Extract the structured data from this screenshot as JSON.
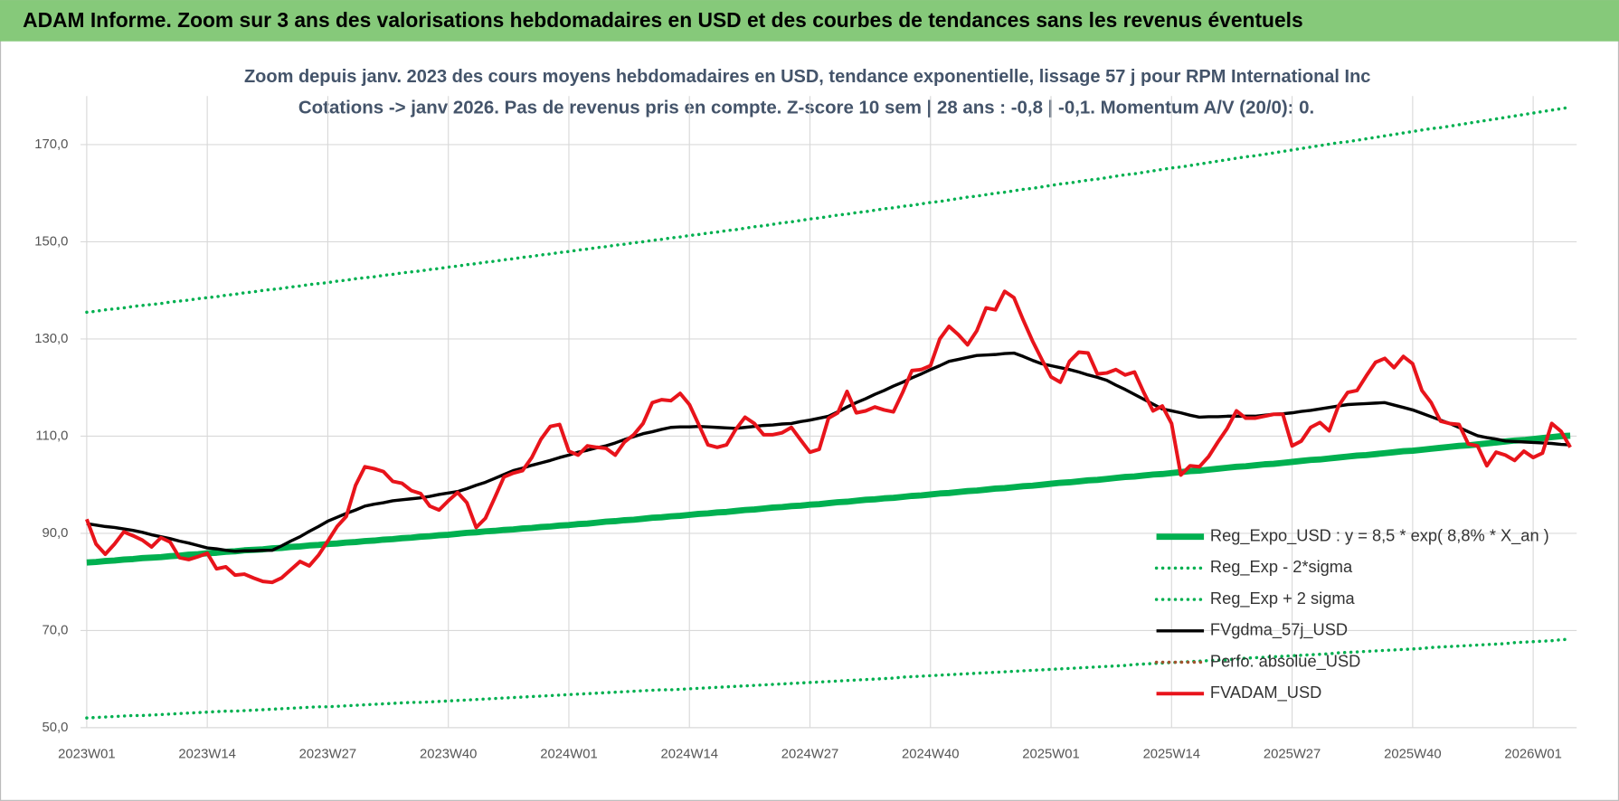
{
  "header": {
    "title": "ADAM Informe. Zoom sur 3 ans des valorisations hebdomadaires en USD et des courbes de tendances sans les revenus éventuels"
  },
  "chart_data": {
    "type": "line",
    "title": "Zoom depuis janv. 2023 des cours moyens hebdomadaires en USD, tendance exponentielle, lissage 57 j pour RPM International Inc",
    "subtitle": "Cotations -> janv 2026. Pas de revenus pris en compte. Z-score 10 sem | 28 ans : -0,8 | -0,1. Momentum A/V (20/0): 0.",
    "categories": [
      "2023W01",
      null,
      null,
      null,
      null,
      null,
      null,
      null,
      null,
      null,
      null,
      null,
      null,
      "2023W14",
      null,
      null,
      null,
      null,
      null,
      null,
      null,
      null,
      null,
      null,
      null,
      null,
      "2023W27",
      null,
      null,
      null,
      null,
      null,
      null,
      null,
      null,
      null,
      null,
      null,
      null,
      "2023W40",
      null,
      null,
      null,
      null,
      null,
      null,
      null,
      null,
      null,
      null,
      null,
      null,
      "2024W01",
      null,
      null,
      null,
      null,
      null,
      null,
      null,
      null,
      null,
      null,
      null,
      null,
      "2024W14",
      null,
      null,
      null,
      null,
      null,
      null,
      null,
      null,
      null,
      null,
      null,
      null,
      "2024W27",
      null,
      null,
      null,
      null,
      null,
      null,
      null,
      null,
      null,
      null,
      null,
      null,
      "2024W40",
      null,
      null,
      null,
      null,
      null,
      null,
      null,
      null,
      null,
      null,
      null,
      null,
      "2025W01",
      null,
      null,
      null,
      null,
      null,
      null,
      null,
      null,
      null,
      null,
      null,
      null,
      "2025W14",
      null,
      null,
      null,
      null,
      null,
      null,
      null,
      null,
      null,
      null,
      null,
      null,
      "2025W27",
      null,
      null,
      null,
      null,
      null,
      null,
      null,
      null,
      null,
      null,
      null,
      null,
      "2025W40",
      null,
      null,
      null,
      null,
      null,
      null,
      null,
      null,
      null,
      null,
      null,
      null,
      "2026W01",
      null,
      null,
      null,
      null
    ],
    "ylim": [
      50,
      180
    ],
    "yticks": [
      {
        "value": 50,
        "label": "50,0"
      },
      {
        "value": 70,
        "label": "70,0"
      },
      {
        "value": 90,
        "label": "90,0"
      },
      {
        "value": 110,
        "label": "110,0"
      },
      {
        "value": 130,
        "label": "130,0"
      },
      {
        "value": 150,
        "label": "150,0"
      },
      {
        "value": 170,
        "label": "170,0"
      }
    ],
    "grid": true,
    "legend": "lower right",
    "series": [
      {
        "name": "Reg_Expo_USD : y = 8,5 * exp( 8,8% * X_an )",
        "color": "#00b050",
        "line_style": "solid",
        "values": [
          84.0,
          84.1,
          84.3,
          84.4,
          84.6,
          84.7,
          84.9,
          85.0,
          85.1,
          85.3,
          85.4,
          85.6,
          85.7,
          85.9,
          86.0,
          86.2,
          86.3,
          86.5,
          86.6,
          86.7,
          86.9,
          87.0,
          87.2,
          87.3,
          87.5,
          87.6,
          87.8,
          87.9,
          88.1,
          88.2,
          88.4,
          88.5,
          88.7,
          88.8,
          89.0,
          89.1,
          89.3,
          89.4,
          89.6,
          89.7,
          89.9,
          90.1,
          90.2,
          90.4,
          90.5,
          90.7,
          90.8,
          91.0,
          91.1,
          91.3,
          91.4,
          91.6,
          91.7,
          91.9,
          92.0,
          92.2,
          92.4,
          92.5,
          92.7,
          92.8,
          93.0,
          93.2,
          93.3,
          93.5,
          93.6,
          93.8,
          94.0,
          94.1,
          94.3,
          94.4,
          94.6,
          94.8,
          94.9,
          95.1,
          95.3,
          95.4,
          95.6,
          95.7,
          95.9,
          96.0,
          96.2,
          96.4,
          96.5,
          96.7,
          96.9,
          97.0,
          97.2,
          97.3,
          97.5,
          97.7,
          97.8,
          98.0,
          98.2,
          98.3,
          98.5,
          98.7,
          98.8,
          99.0,
          99.2,
          99.3,
          99.5,
          99.7,
          99.8,
          100.0,
          100.2,
          100.4,
          100.5,
          100.7,
          100.9,
          101.0,
          101.2,
          101.4,
          101.6,
          101.7,
          101.9,
          102.1,
          102.2,
          102.4,
          102.6,
          102.8,
          102.9,
          103.1,
          103.3,
          103.5,
          103.7,
          103.8,
          104.0,
          104.2,
          104.3,
          104.5,
          104.7,
          104.9,
          105.1,
          105.2,
          105.4,
          105.6,
          105.8,
          106.0,
          106.1,
          106.3,
          106.5,
          106.7,
          106.9,
          107.0,
          107.2,
          107.4,
          107.6,
          107.8,
          108.0,
          108.1,
          108.3,
          108.5,
          108.7,
          108.9,
          109.1,
          109.2,
          109.4,
          109.6,
          109.8,
          110.0,
          110.1
        ]
      },
      {
        "name": "Reg_Exp - 2*sigma",
        "color": "#00b050",
        "line_style": "dotted",
        "values": [
          52.0,
          52.1,
          52.2,
          52.3,
          52.4,
          52.5,
          52.5,
          52.6,
          52.7,
          52.8,
          52.9,
          53.0,
          53.1,
          53.2,
          53.3,
          53.4,
          53.4,
          53.5,
          53.6,
          53.7,
          53.8,
          53.9,
          54.0,
          54.1,
          54.2,
          54.3,
          54.3,
          54.4,
          54.5,
          54.6,
          54.7,
          54.8,
          54.9,
          55.0,
          55.1,
          55.2,
          55.2,
          55.3,
          55.4,
          55.5,
          55.6,
          55.7,
          55.8,
          55.9,
          56.0,
          56.1,
          56.2,
          56.3,
          56.4,
          56.5,
          56.6,
          56.7,
          56.8,
          56.9,
          57.0,
          57.1,
          57.2,
          57.3,
          57.4,
          57.5,
          57.6,
          57.7,
          57.8,
          57.8,
          57.9,
          58.0,
          58.1,
          58.2,
          58.3,
          58.4,
          58.5,
          58.6,
          58.7,
          58.8,
          58.9,
          59.0,
          59.1,
          59.2,
          59.3,
          59.4,
          59.5,
          59.6,
          59.7,
          59.8,
          59.9,
          60.0,
          60.1,
          60.2,
          60.4,
          60.5,
          60.6,
          60.7,
          60.8,
          60.9,
          61.0,
          61.1,
          61.2,
          61.3,
          61.4,
          61.5,
          61.6,
          61.7,
          61.8,
          61.9,
          62.0,
          62.1,
          62.2,
          62.3,
          62.4,
          62.5,
          62.6,
          62.7,
          62.8,
          63.0,
          63.1,
          63.2,
          63.3,
          63.4,
          63.5,
          63.6,
          63.7,
          63.8,
          63.9,
          64.0,
          64.1,
          64.3,
          64.4,
          64.5,
          64.6,
          64.7,
          64.8,
          64.9,
          65.0,
          65.1,
          65.2,
          65.4,
          65.5,
          65.6,
          65.7,
          65.8,
          65.9,
          66.0,
          66.1,
          66.2,
          66.3,
          66.5,
          66.6,
          66.7,
          66.8,
          66.9,
          67.0,
          67.1,
          67.2,
          67.3,
          67.5,
          67.6,
          67.7,
          67.8,
          67.9,
          68.1,
          68.2
        ]
      },
      {
        "name": "Reg_Exp + 2 sigma",
        "color": "#00b050",
        "line_style": "dotted",
        "values": [
          135.5,
          135.7,
          136.0,
          136.2,
          136.4,
          136.7,
          136.9,
          137.1,
          137.3,
          137.6,
          137.8,
          138.0,
          138.3,
          138.5,
          138.7,
          139.0,
          139.2,
          139.5,
          139.7,
          140.0,
          140.2,
          140.4,
          140.7,
          140.9,
          141.2,
          141.4,
          141.6,
          141.9,
          142.1,
          142.4,
          142.6,
          142.8,
          143.1,
          143.3,
          143.6,
          143.8,
          144.0,
          144.3,
          144.5,
          144.8,
          145.0,
          145.3,
          145.5,
          145.8,
          146.0,
          146.3,
          146.5,
          146.8,
          147.0,
          147.3,
          147.5,
          147.8,
          148.0,
          148.3,
          148.5,
          148.8,
          149.0,
          149.3,
          149.5,
          149.8,
          150.0,
          150.3,
          150.5,
          150.8,
          151.0,
          151.3,
          151.5,
          151.8,
          152.0,
          152.3,
          152.5,
          152.8,
          153.1,
          153.3,
          153.6,
          153.9,
          154.1,
          154.4,
          154.7,
          154.9,
          155.2,
          155.5,
          155.7,
          156.0,
          156.2,
          156.5,
          156.8,
          157.0,
          157.3,
          157.5,
          157.8,
          158.1,
          158.3,
          158.6,
          158.9,
          159.2,
          159.4,
          159.7,
          160.0,
          160.2,
          160.5,
          160.8,
          161.0,
          161.3,
          161.6,
          161.9,
          162.1,
          162.4,
          162.7,
          162.9,
          163.2,
          163.5,
          163.8,
          164.0,
          164.3,
          164.6,
          164.9,
          165.2,
          165.4,
          165.7,
          166.0,
          166.3,
          166.6,
          166.9,
          167.2,
          167.5,
          167.7,
          168.0,
          168.3,
          168.6,
          168.9,
          169.2,
          169.5,
          169.8,
          170.1,
          170.4,
          170.6,
          170.9,
          171.2,
          171.5,
          171.8,
          172.1,
          172.4,
          172.7,
          173.0,
          173.3,
          173.5,
          173.8,
          174.1,
          174.4,
          174.7,
          175.0,
          175.3,
          175.6,
          175.9,
          176.2,
          176.5,
          176.8,
          177.1,
          177.4,
          177.7
        ]
      },
      {
        "name": "FVgdma_57j_USD",
        "color": "#000000",
        "line_style": "solid",
        "values": [
          92.0,
          91.7,
          91.4,
          91.2,
          90.9,
          90.6,
          90.2,
          89.7,
          89.3,
          88.9,
          88.4,
          88.0,
          87.5,
          87.0,
          86.8,
          86.5,
          86.3,
          86.4,
          86.4,
          86.5,
          86.5,
          87.4,
          88.4,
          89.3,
          90.4,
          91.4,
          92.5,
          93.3,
          94.1,
          94.8,
          95.6,
          96.0,
          96.3,
          96.7,
          96.9,
          97.1,
          97.3,
          97.6,
          98.0,
          98.3,
          98.6,
          99.2,
          99.9,
          100.5,
          101.3,
          102.1,
          102.9,
          103.4,
          104.0,
          104.5,
          105.0,
          105.6,
          106.1,
          106.7,
          107.1,
          107.6,
          108.0,
          108.6,
          109.3,
          109.9,
          110.5,
          110.9,
          111.4,
          111.8,
          111.9,
          111.9,
          112.0,
          111.9,
          111.8,
          111.7,
          111.6,
          111.8,
          112.0,
          112.2,
          112.3,
          112.5,
          112.6,
          113.0,
          113.3,
          113.7,
          114.1,
          115.0,
          116.0,
          116.9,
          117.7,
          118.6,
          119.4,
          120.3,
          121.1,
          122.0,
          122.8,
          123.7,
          124.5,
          125.4,
          125.8,
          126.2,
          126.6,
          126.7,
          126.8,
          127.0,
          127.1,
          126.4,
          125.6,
          124.9,
          124.5,
          124.1,
          123.7,
          123.2,
          122.6,
          122.1,
          121.5,
          120.5,
          119.6,
          118.6,
          117.6,
          116.6,
          115.6,
          115.2,
          114.8,
          114.3,
          113.9,
          114.0,
          114.0,
          114.1,
          114.1,
          114.1,
          114.1,
          114.3,
          114.5,
          114.6,
          114.8,
          115.1,
          115.3,
          115.6,
          115.9,
          116.2,
          116.5,
          116.6,
          116.7,
          116.8,
          116.9,
          116.4,
          115.9,
          115.4,
          114.7,
          114.0,
          113.3,
          112.6,
          111.8,
          110.9,
          110.1,
          109.7,
          109.4,
          109.0,
          108.9,
          108.8,
          108.7,
          108.6,
          108.5,
          108.3,
          108.2
        ]
      },
      {
        "name": "Perfo. absolue_USD",
        "color": "#a0522d",
        "line_style": "dotted",
        "values": [
          null,
          null,
          null,
          null,
          null,
          null,
          null,
          null,
          null,
          null,
          null,
          null,
          null,
          null,
          null,
          null,
          null,
          null,
          null,
          null,
          null,
          null,
          null,
          null,
          null,
          null,
          null,
          null,
          null,
          null,
          null,
          null,
          null,
          null,
          null,
          null,
          null,
          null,
          null,
          null,
          null,
          null,
          null,
          null,
          null,
          null,
          null,
          null,
          null,
          null,
          null,
          null,
          null,
          null,
          null,
          null,
          null,
          null,
          null,
          null,
          null,
          null,
          null,
          null,
          null,
          null,
          null,
          null,
          null,
          null,
          null,
          null,
          null,
          null,
          null,
          null,
          null,
          null,
          null,
          null,
          null,
          null,
          null,
          null,
          null,
          null,
          null,
          null,
          null,
          null,
          null,
          null,
          null,
          null,
          null,
          null,
          null,
          null,
          null,
          null,
          null,
          null,
          null,
          null,
          null,
          null,
          null,
          null,
          null,
          null,
          null,
          null,
          null,
          null,
          null,
          null,
          null,
          null,
          null,
          null,
          null,
          null,
          null,
          null,
          null,
          null,
          null,
          null,
          null,
          null,
          null,
          null,
          null,
          null,
          null,
          null,
          null,
          null,
          null,
          null,
          null,
          null,
          null,
          null,
          null,
          null,
          null,
          null,
          null,
          null,
          null,
          null,
          null,
          null,
          null,
          null,
          null,
          null,
          null,
          null,
          null
        ]
      },
      {
        "name": "FVADAM_USD",
        "color": "#e8141b",
        "line_style": "solid",
        "values": [
          92.9,
          87.8,
          85.7,
          87.8,
          90.3,
          89.5,
          88.6,
          87.2,
          89.1,
          88.2,
          85.0,
          84.6,
          85.2,
          85.9,
          82.7,
          83.1,
          81.4,
          81.6,
          80.8,
          80.1,
          79.9,
          80.8,
          82.5,
          84.2,
          83.3,
          85.5,
          88.4,
          91.4,
          93.5,
          99.9,
          103.7,
          103.3,
          102.7,
          100.7,
          100.3,
          98.8,
          98.2,
          95.6,
          94.8,
          96.7,
          98.4,
          96.3,
          91.2,
          93.1,
          97.3,
          101.6,
          102.4,
          102.9,
          105.6,
          109.4,
          112.0,
          112.4,
          106.9,
          106.1,
          108.0,
          107.7,
          107.5,
          106.1,
          108.8,
          110.3,
          112.6,
          116.9,
          117.5,
          117.3,
          118.8,
          116.5,
          112.4,
          108.2,
          107.7,
          108.2,
          111.4,
          113.9,
          112.6,
          110.3,
          110.3,
          110.7,
          111.8,
          109.2,
          106.7,
          107.3,
          113.7,
          114.8,
          119.2,
          114.8,
          115.2,
          116.0,
          115.4,
          115.0,
          119.0,
          123.5,
          123.7,
          124.5,
          130.0,
          132.6,
          130.9,
          128.8,
          131.7,
          136.4,
          136.0,
          139.8,
          138.5,
          133.9,
          129.6,
          125.8,
          122.2,
          121.1,
          125.4,
          127.3,
          127.1,
          122.8,
          123.0,
          123.7,
          122.6,
          123.2,
          119.0,
          115.2,
          116.2,
          112.6,
          102.0,
          103.9,
          103.7,
          105.8,
          108.8,
          111.6,
          115.2,
          113.7,
          113.7,
          114.1,
          114.5,
          114.5,
          108.0,
          109.0,
          111.8,
          112.8,
          111.1,
          116.2,
          119.0,
          119.4,
          122.4,
          125.2,
          126.0,
          124.1,
          126.4,
          124.9,
          119.4,
          116.9,
          113.1,
          112.6,
          112.4,
          108.4,
          108.0,
          103.9,
          106.7,
          106.1,
          105.0,
          106.9,
          105.6,
          106.5,
          112.6,
          111.0,
          107.7
        ]
      }
    ]
  }
}
